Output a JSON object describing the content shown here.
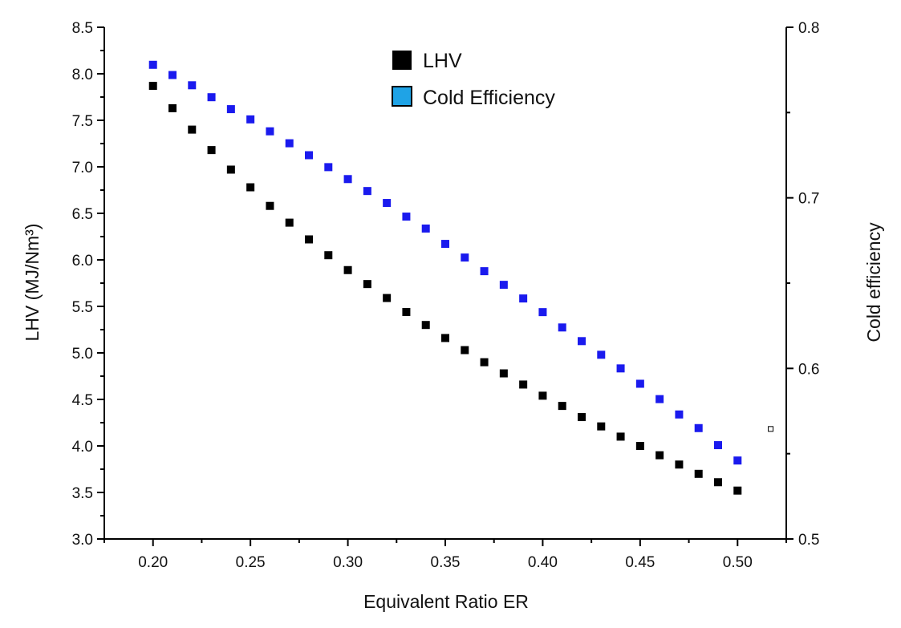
{
  "chart_data": {
    "type": "scatter",
    "xlabel": "Equivalent Ratio ER",
    "ylabel_left": "LHV (MJ/Nm³)",
    "ylabel_right": "Cold efficiency",
    "xlim": [
      0.175,
      0.525
    ],
    "ylim_left": [
      3.0,
      8.5
    ],
    "ylim_right": [
      0.5,
      0.8
    ],
    "x_ticks": [
      "0.20",
      "0.25",
      "0.30",
      "0.35",
      "0.40",
      "0.45",
      "0.50"
    ],
    "y_left_ticks": [
      "3.0",
      "3.5",
      "4.0",
      "4.5",
      "5.0",
      "5.5",
      "6.0",
      "6.5",
      "7.0",
      "7.5",
      "8.0",
      "8.5"
    ],
    "y_right_ticks": [
      "0.5",
      "0.6",
      "0.7",
      "0.8"
    ],
    "legend": [
      {
        "label": "LHV",
        "color": "#000000"
      },
      {
        "label": "Cold Efficiency",
        "color": "#1fa3e6"
      }
    ],
    "x": [
      0.2,
      0.21,
      0.22,
      0.23,
      0.24,
      0.25,
      0.26,
      0.27,
      0.28,
      0.29,
      0.3,
      0.31,
      0.32,
      0.33,
      0.34,
      0.35,
      0.36,
      0.37,
      0.38,
      0.39,
      0.4,
      0.41,
      0.42,
      0.43,
      0.44,
      0.45,
      0.46,
      0.47,
      0.48,
      0.49,
      0.5
    ],
    "series": [
      {
        "name": "LHV",
        "axis": "left",
        "color": "#000000",
        "values": [
          7.87,
          7.63,
          7.4,
          7.18,
          6.97,
          6.78,
          6.58,
          6.4,
          6.22,
          6.05,
          5.89,
          5.74,
          5.59,
          5.44,
          5.3,
          5.16,
          5.03,
          4.9,
          4.78,
          4.66,
          4.54,
          4.43,
          4.31,
          4.21,
          4.1,
          4.0,
          3.9,
          3.8,
          3.7,
          3.61,
          3.52
        ]
      },
      {
        "name": "Cold Efficiency",
        "axis": "right",
        "color": "#1a1aee",
        "values": [
          0.778,
          0.772,
          0.766,
          0.759,
          0.752,
          0.746,
          0.739,
          0.732,
          0.725,
          0.718,
          0.711,
          0.704,
          0.697,
          0.689,
          0.682,
          0.673,
          0.665,
          0.657,
          0.649,
          0.641,
          0.633,
          0.624,
          0.616,
          0.608,
          0.6,
          0.591,
          0.582,
          0.573,
          0.565,
          0.555,
          0.546
        ]
      }
    ],
    "annotations": [
      {
        "type": "open-square",
        "x": 0.517,
        "y_right": 0.5645
      }
    ]
  }
}
